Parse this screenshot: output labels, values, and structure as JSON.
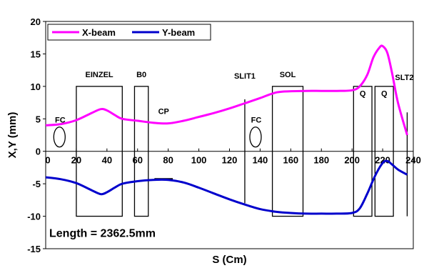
{
  "chart_data": {
    "type": "line",
    "xlabel": "S (Cm)",
    "ylabel": "X,Y (mm)",
    "xlim": [
      0,
      240
    ],
    "ylim": [
      -15,
      20
    ],
    "xticks": [
      0,
      20,
      40,
      60,
      80,
      100,
      120,
      140,
      160,
      180,
      200,
      220,
      240
    ],
    "yticks": [
      -15,
      -10,
      -5,
      0,
      5,
      10,
      15,
      20
    ],
    "grid": false,
    "legend": "top-left",
    "series": [
      {
        "name": "X-beam",
        "color": "#ff00ff",
        "x": [
          0,
          10,
          20,
          30,
          36,
          40,
          45,
          50,
          60,
          70,
          80,
          90,
          100,
          110,
          120,
          130,
          140,
          148,
          155,
          170,
          180,
          190,
          200,
          205,
          210,
          214,
          218,
          220,
          223,
          226,
          230,
          236
        ],
        "y": [
          4.0,
          4.2,
          4.8,
          5.9,
          6.5,
          6.3,
          5.6,
          5.0,
          4.7,
          4.4,
          4.3,
          4.7,
          5.3,
          5.9,
          6.6,
          7.4,
          8.2,
          8.9,
          9.2,
          9.3,
          9.3,
          9.3,
          9.4,
          10.0,
          11.8,
          14.5,
          16.0,
          16.2,
          15.2,
          12.2,
          7.5,
          2.5
        ]
      },
      {
        "name": "Y-beam",
        "color": "#0000cc",
        "x": [
          0,
          10,
          20,
          30,
          36,
          40,
          45,
          50,
          60,
          70,
          80,
          90,
          100,
          110,
          120,
          130,
          140,
          150,
          160,
          170,
          180,
          190,
          200,
          205,
          210,
          215,
          220,
          223,
          226,
          230,
          236
        ],
        "y": [
          -4.0,
          -4.3,
          -4.9,
          -6.0,
          -6.6,
          -6.3,
          -5.6,
          -5.0,
          -4.6,
          -4.4,
          -4.4,
          -4.8,
          -5.6,
          -6.5,
          -7.4,
          -8.2,
          -8.9,
          -9.3,
          -9.5,
          -9.6,
          -9.6,
          -9.6,
          -9.5,
          -8.8,
          -6.5,
          -3.8,
          -1.8,
          -1.5,
          -2.0,
          -2.8,
          -3.6
        ]
      }
    ],
    "elements": [
      {
        "kind": "box",
        "label": "EINZEL",
        "x0": 20,
        "x1": 50,
        "y0": -10,
        "y1": 10
      },
      {
        "kind": "box",
        "label": "B0",
        "x0": 58,
        "x1": 67,
        "y0": -10,
        "y1": 10
      },
      {
        "kind": "box",
        "label": "SOL",
        "x0": 148,
        "x1": 168,
        "y0": -10,
        "y1": 10
      },
      {
        "kind": "box",
        "label": "Q",
        "x0": 201,
        "x1": 213,
        "y0": -10,
        "y1": 10
      },
      {
        "kind": "box",
        "label": "Q",
        "x0": 215,
        "x1": 227,
        "y0": -10,
        "y1": 10
      },
      {
        "kind": "vline",
        "label": "SLIT1",
        "x": 130,
        "y0": -8,
        "y1": 8
      },
      {
        "kind": "vline",
        "label": "SLT2",
        "x": 236,
        "y0": -10,
        "y1": 6
      },
      {
        "kind": "hmark",
        "label": "CP",
        "x0": 71,
        "x1": 83,
        "y_top": 4.3,
        "y_bottom": -4.3
      },
      {
        "kind": "ellipse",
        "label": "FC",
        "x": 9,
        "y": 2.2
      },
      {
        "kind": "ellipse",
        "label": "FC",
        "x": 137,
        "y": 2.2
      }
    ],
    "annotation": "Length = 2362.5mm"
  }
}
